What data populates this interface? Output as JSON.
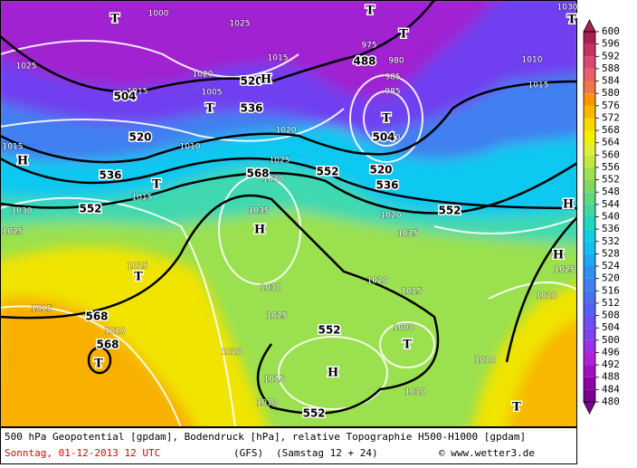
{
  "caption": {
    "line1": "500 hPa Geopotential [gpdam], Bodendruck [hPa], relative Topographie H500-H1000 [gpdam]",
    "date": "Sonntag, 01-12-2013  12 UTC",
    "model": "(GFS)",
    "run": "(Samstag 12 + 24)",
    "source": "© www.wetter3.de"
  },
  "map": {
    "geopotential_labels": [
      "488",
      "504",
      "504",
      "520",
      "520",
      "520",
      "536",
      "536",
      "536",
      "552",
      "552",
      "552",
      "552",
      "552",
      "568",
      "568",
      "568"
    ],
    "pressure_labels": [
      "1000",
      "1025",
      "1015",
      "1025",
      "1015",
      "1020",
      "1005",
      "975",
      "980",
      "985",
      "985",
      "990",
      "1010",
      "1015",
      "1030",
      "1020",
      "1010",
      "1015",
      "1025",
      "1030",
      "1015",
      "1030",
      "1025",
      "1035",
      "1020",
      "1025",
      "1015",
      "1025",
      "1030",
      "1020",
      "1015",
      "1020",
      "1015",
      "1025",
      "1010",
      "1000",
      "1020",
      "1010",
      "1015",
      "1010",
      "1010"
    ],
    "centers": [
      "T",
      "T",
      "T",
      "H",
      "T",
      "T",
      "H",
      "T",
      "H",
      "H",
      "H",
      "T",
      "T",
      "H",
      "T",
      "T",
      "T"
    ]
  },
  "colorbar": {
    "range": [
      480,
      600
    ],
    "ticks": [
      480,
      484,
      488,
      492,
      496,
      500,
      504,
      508,
      512,
      516,
      520,
      524,
      528,
      532,
      536,
      540,
      544,
      548,
      552,
      556,
      560,
      564,
      568,
      572,
      576,
      580,
      584,
      588,
      592,
      596,
      600
    ],
    "band_colors": [
      "#7a0090",
      "#8e00a8",
      "#a010c0",
      "#b020d8",
      "#9a30e8",
      "#7d40f0",
      "#6a50f0",
      "#5560f0",
      "#4a70f0",
      "#3f80f0",
      "#3090f0",
      "#20a8f0",
      "#10c0f0",
      "#10d0e0",
      "#20d8c0",
      "#40d8a0",
      "#60d880",
      "#80d860",
      "#a0e050",
      "#c0e840",
      "#e0f030",
      "#f0f000",
      "#f8d800",
      "#f8b800",
      "#f89800",
      "#f07848",
      "#e86068",
      "#d84870",
      "#c83060",
      "#a82050"
    ]
  }
}
